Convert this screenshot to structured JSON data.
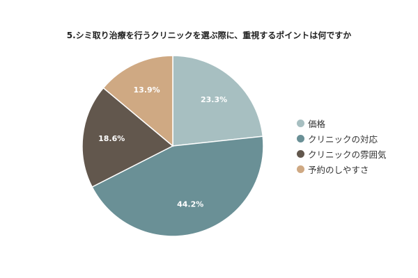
{
  "chart_data": {
    "type": "pie",
    "title": "5.シミ取り治療を行うクリニックを選ぶ際に、重視するポイントは何ですか",
    "categories": [
      "価格",
      "クリニックの対応",
      "クリニックの雰囲気",
      "予約のしやすさ"
    ],
    "values": [
      23.3,
      44.2,
      18.6,
      13.9
    ],
    "value_labels": [
      "23.3%",
      "44.2%",
      "18.6%",
      "13.9%"
    ],
    "colors": [
      "#a7bfc1",
      "#6a9096",
      "#62574d",
      "#cfa983"
    ],
    "start_angle_deg": 0,
    "direction": "clockwise",
    "legend_position": "right"
  }
}
